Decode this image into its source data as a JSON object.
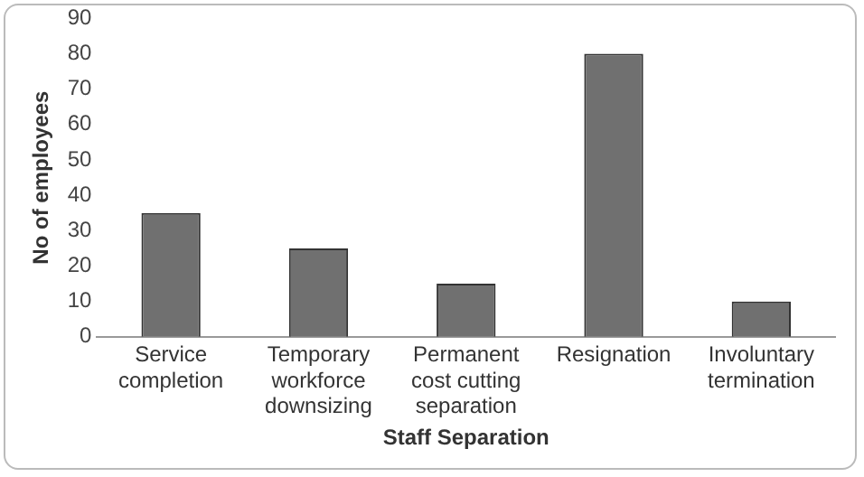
{
  "chart_data": {
    "type": "bar",
    "xlabel": "Staff Separation",
    "ylabel": "No of employees",
    "categories": [
      "Service completion",
      "Temporary workforce downsizing",
      "Permanent cost cutting separation",
      "Resignation",
      "Involuntary termination"
    ],
    "values": [
      35,
      25,
      15,
      80,
      10
    ],
    "color": "#707070",
    "ylim": [
      0,
      90
    ],
    "yticks": [
      0,
      10,
      20,
      30,
      40,
      50,
      60,
      70,
      80,
      90
    ],
    "grid": false,
    "legend": false
  }
}
